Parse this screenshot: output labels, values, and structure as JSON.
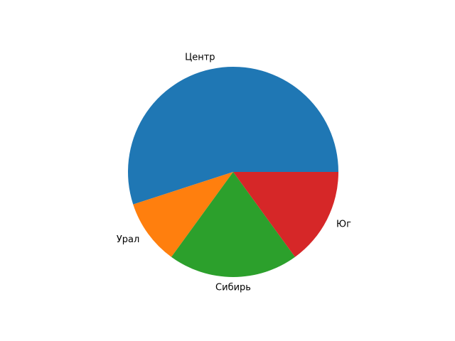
{
  "chart_data": {
    "type": "pie",
    "categories": [
      "Центр",
      "Урал",
      "Сибирь",
      "Юг"
    ],
    "values": [
      55,
      10,
      20,
      15
    ],
    "colors": [
      "#1f77b4",
      "#ff7f0e",
      "#2ca02c",
      "#d62728"
    ],
    "start_angle_deg": 0,
    "direction": "counterclockwise",
    "title": ""
  }
}
